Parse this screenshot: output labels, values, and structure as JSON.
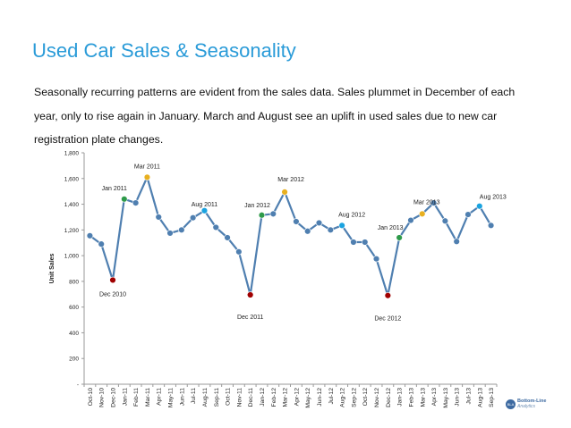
{
  "title": "Used Car Sales & Seasonality",
  "description": "Seasonally recurring patterns are evident from the sales data.  Sales plummet in December  of each year, only to rise again in January.  March and August see an uplift in used sales due to new car registration plate changes.",
  "logo": {
    "badge": "BLA",
    "line1": "Bottom-Line",
    "line2": "Analytics"
  },
  "colors": {
    "line": "#4f7fb0",
    "marker_default": "#4f7fb0",
    "marker_dec": "#a00000",
    "marker_jan": "#2e9a4a",
    "marker_mar": "#e8b020",
    "marker_aug": "#1aa3e0",
    "title": "#2a9bd8"
  },
  "chart_data": {
    "type": "line",
    "title": "",
    "xlabel": "",
    "ylabel": "Unit Sales",
    "ylim": [
      0,
      1800
    ],
    "yticks": [
      0,
      200,
      400,
      600,
      800,
      1000,
      1200,
      1400,
      1600,
      1800
    ],
    "ytick_labels": [
      "-",
      "200",
      "400",
      "600",
      "800",
      "1,000",
      "1,200",
      "1,400",
      "1,600",
      "1,800"
    ],
    "categories": [
      "Oct-10",
      "Nov-10",
      "Dec-10",
      "Jan-11",
      "Feb-11",
      "Mar-11",
      "Apr-11",
      "May-11",
      "Jun-11",
      "Jul-11",
      "Aug-11",
      "Sep-11",
      "Oct-11",
      "Nov-11",
      "Dec-11",
      "Jan-12",
      "Feb-12",
      "Mar-12",
      "Apr-12",
      "May-12",
      "Jun-12",
      "Jul-12",
      "Aug-12",
      "Sep-12",
      "Oct-12",
      "Nov-12",
      "Dec-12",
      "Jan-13",
      "Feb-13",
      "Mar-13",
      "Apr-13",
      "May-13",
      "Jun-13",
      "Jul-13",
      "Aug-13",
      "Sep-13"
    ],
    "series": [
      {
        "name": "Unit Sales",
        "values": [
          1155,
          1090,
          810,
          1440,
          1410,
          1610,
          1300,
          1175,
          1200,
          1295,
          1350,
          1220,
          1140,
          1030,
          695,
          1315,
          1325,
          1495,
          1265,
          1190,
          1255,
          1200,
          1235,
          1105,
          1105,
          975,
          690,
          1140,
          1275,
          1325,
          1410,
          1270,
          1110,
          1320,
          1385,
          1235
        ]
      }
    ],
    "highlights": [
      {
        "index": 2,
        "kind": "dec"
      },
      {
        "index": 3,
        "kind": "jan"
      },
      {
        "index": 5,
        "kind": "mar"
      },
      {
        "index": 10,
        "kind": "aug"
      },
      {
        "index": 14,
        "kind": "dec"
      },
      {
        "index": 15,
        "kind": "jan"
      },
      {
        "index": 17,
        "kind": "mar"
      },
      {
        "index": 22,
        "kind": "aug"
      },
      {
        "index": 26,
        "kind": "dec"
      },
      {
        "index": 27,
        "kind": "jan"
      },
      {
        "index": 29,
        "kind": "mar"
      },
      {
        "index": 34,
        "kind": "aug"
      }
    ],
    "annotations": [
      {
        "index": 2,
        "text": "Dec 2010"
      },
      {
        "index": 3,
        "text": "Jan 2011"
      },
      {
        "index": 5,
        "text": "Mar 2011"
      },
      {
        "index": 10,
        "text": "Aug 2011"
      },
      {
        "index": 14,
        "text": "Dec 2011"
      },
      {
        "index": 15,
        "text": "Jan 2012"
      },
      {
        "index": 17,
        "text": "Mar 2012"
      },
      {
        "index": 22,
        "text": "Aug 2012"
      },
      {
        "index": 26,
        "text": "Dec 2012"
      },
      {
        "index": 27,
        "text": "Jan 2013"
      },
      {
        "index": 29,
        "text": "Mar 2013"
      },
      {
        "index": 34,
        "text": "Aug 2013"
      }
    ]
  }
}
